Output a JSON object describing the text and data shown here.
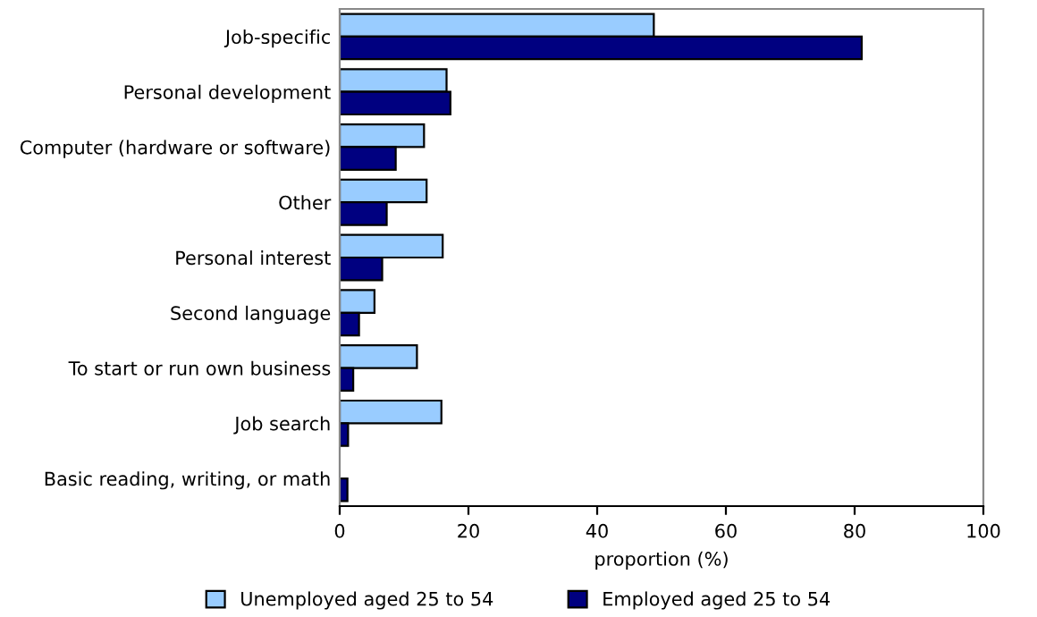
{
  "chart_data": {
    "type": "bar",
    "orientation": "horizontal",
    "xlabel": "proportion (%)",
    "categories": [
      "Job-specific",
      "Personal development",
      "Computer (hardware or software)",
      "Other",
      "Personal interest",
      "Second language",
      "To start or run own business",
      "Job search",
      "Basic reading, writing, or math"
    ],
    "series": [
      {
        "name": "Unemployed aged 25 to 54",
        "color": "#99ccff",
        "values": [
          48.8,
          16.6,
          13.1,
          13.5,
          16.0,
          5.4,
          12.0,
          15.8,
          null
        ]
      },
      {
        "name": "Employed aged 25 to 54",
        "color": "#000080",
        "values": [
          81.1,
          17.2,
          8.7,
          7.3,
          6.6,
          3.0,
          2.1,
          1.3,
          1.2
        ]
      }
    ],
    "xlim": [
      0,
      100
    ],
    "xticks": [
      0,
      20,
      40,
      60,
      80,
      100
    ],
    "grid": false,
    "legend": "bottom"
  }
}
